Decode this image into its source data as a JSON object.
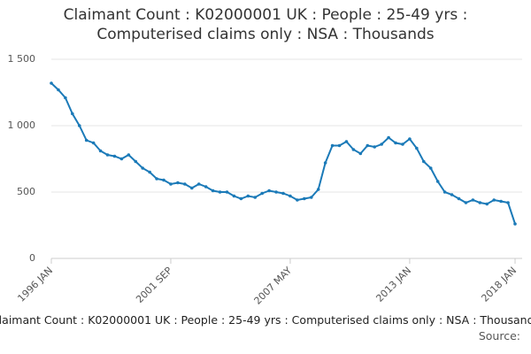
{
  "chart_data": {
    "type": "line",
    "title": "Claimant Count : K02000001 UK : People : 25-49 yrs : Computerised claims only : NSA : Thousands",
    "source": "Source:",
    "x": [
      "1996 JAN",
      "1996 MAY",
      "1996 SEP",
      "1997 JAN",
      "1997 MAY",
      "1997 SEP",
      "1998 JAN",
      "1998 MAY",
      "1998 SEP",
      "1999 JAN",
      "1999 MAY",
      "1999 SEP",
      "2000 JAN",
      "2000 MAY",
      "2000 SEP",
      "2001 JAN",
      "2001 MAY",
      "2001 SEP",
      "2002 JAN",
      "2002 MAY",
      "2002 SEP",
      "2003 JAN",
      "2003 MAY",
      "2003 SEP",
      "2004 JAN",
      "2004 MAY",
      "2004 SEP",
      "2005 JAN",
      "2005 MAY",
      "2005 SEP",
      "2006 JAN",
      "2006 MAY",
      "2006 SEP",
      "2007 JAN",
      "2007 MAY",
      "2007 SEP",
      "2008 JAN",
      "2008 MAY",
      "2008 SEP",
      "2009 JAN",
      "2009 MAY",
      "2009 SEP",
      "2010 JAN",
      "2010 MAY",
      "2010 SEP",
      "2011 JAN",
      "2011 MAY",
      "2011 SEP",
      "2012 JAN",
      "2012 MAY",
      "2012 SEP",
      "2013 JAN",
      "2013 MAY",
      "2013 SEP",
      "2014 JAN",
      "2014 MAY",
      "2014 SEP",
      "2015 JAN",
      "2015 MAY",
      "2015 SEP",
      "2016 JAN",
      "2016 MAY",
      "2016 SEP",
      "2017 JAN",
      "2017 MAY",
      "2017 SEP",
      "2018 JAN"
    ],
    "series": [
      {
        "name": "Claimant Count",
        "color": "#1b7ab8",
        "values": [
          1320,
          1270,
          1210,
          1090,
          1000,
          890,
          870,
          810,
          780,
          770,
          750,
          780,
          730,
          680,
          650,
          600,
          590,
          560,
          570,
          560,
          530,
          560,
          540,
          510,
          500,
          500,
          470,
          450,
          470,
          460,
          490,
          510,
          500,
          490,
          470,
          440,
          450,
          460,
          520,
          720,
          850,
          850,
          880,
          820,
          790,
          850,
          840,
          860,
          910,
          870,
          860,
          900,
          830,
          730,
          680,
          580,
          500,
          480,
          450,
          420,
          440,
          420,
          410,
          440,
          430,
          420,
          260
        ]
      }
    ],
    "xticks": [
      "1996 JAN",
      "2001 SEP",
      "2007 MAY",
      "2013 JAN",
      "2018 JAN"
    ],
    "ylim": [
      0,
      1500
    ],
    "yticks": [
      0,
      500,
      {
        "value": 1000,
        "label": "1 000"
      },
      {
        "value": 1500,
        "label": "1 500"
      }
    ],
    "grid": true
  }
}
